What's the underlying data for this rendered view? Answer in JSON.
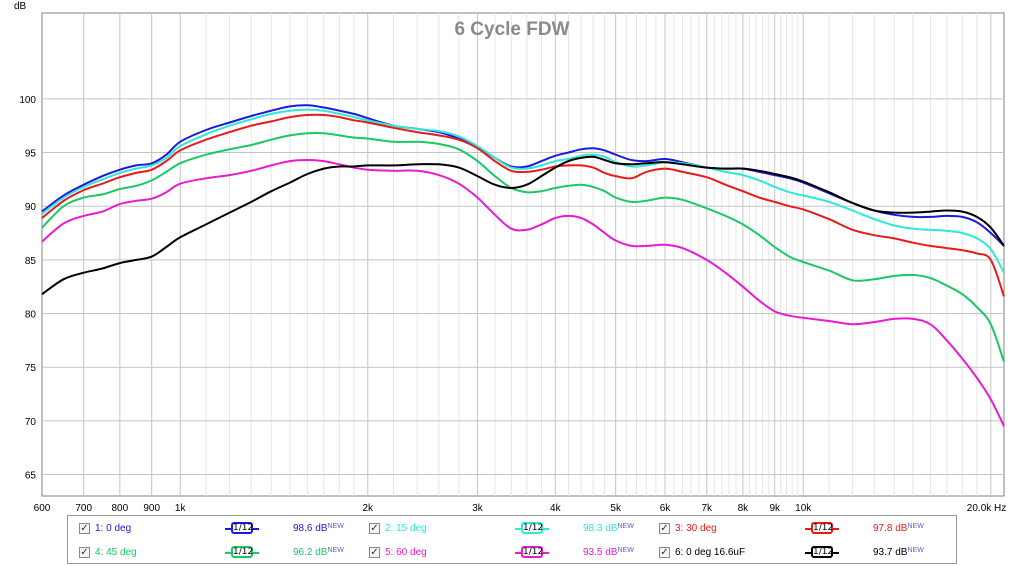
{
  "chart_data": {
    "type": "line",
    "title": "6 Cycle FDW",
    "ylabel": "dB",
    "xlabel": "Hz",
    "xscale": "log",
    "xlim": [
      600,
      21000
    ],
    "ylim": [
      63,
      108
    ],
    "grid": true,
    "x_ticks": [
      {
        "v": 600,
        "label": "600"
      },
      {
        "v": 700,
        "label": "700"
      },
      {
        "v": 800,
        "label": "800"
      },
      {
        "v": 900,
        "label": "900"
      },
      {
        "v": 1000,
        "label": "1k"
      },
      {
        "v": 2000,
        "label": "2k"
      },
      {
        "v": 3000,
        "label": "3k"
      },
      {
        "v": 4000,
        "label": "4k"
      },
      {
        "v": 5000,
        "label": "5k"
      },
      {
        "v": 6000,
        "label": "6k"
      },
      {
        "v": 7000,
        "label": "7k"
      },
      {
        "v": 8000,
        "label": "8k"
      },
      {
        "v": 9000,
        "label": "9k"
      },
      {
        "v": 10000,
        "label": "10k"
      },
      {
        "v": 20000,
        "label": "20.0k Hz"
      }
    ],
    "minor_x": [
      1100,
      1200,
      1300,
      1400,
      1500,
      1600,
      1700,
      1800,
      1900,
      2200,
      2400,
      2600,
      2800,
      3200,
      3400,
      3600,
      3800,
      4200,
      4400,
      4600,
      4800,
      5200,
      5400,
      5600,
      5800,
      6200,
      6400,
      6600,
      6800,
      7200,
      7400,
      7600,
      7800,
      8200,
      8400,
      8600,
      8800,
      9200,
      9400,
      9600,
      9800,
      11000,
      12000,
      13000,
      14000,
      15000,
      16000,
      17000,
      18000,
      19000
    ],
    "y_ticks": [
      65,
      70,
      75,
      80,
      85,
      90,
      95,
      100
    ],
    "series": [
      {
        "name": "1: 0 deg",
        "color": "#1a1ae0",
        "value_label": "98.6 dB",
        "x": [
          600,
          650,
          700,
          750,
          800,
          850,
          900,
          950,
          1000,
          1100,
          1200,
          1300,
          1400,
          1500,
          1600,
          1700,
          1800,
          1900,
          2000,
          2200,
          2400,
          2600,
          2800,
          3000,
          3200,
          3400,
          3600,
          3800,
          4000,
          4200,
          4400,
          4600,
          4800,
          5000,
          5300,
          5600,
          6000,
          6400,
          7000,
          7500,
          8000,
          8500,
          9000,
          9500,
          10000,
          11000,
          12000,
          13000,
          14000,
          15000,
          16000,
          17000,
          18000,
          19000,
          20000,
          21000
        ],
        "y": [
          89.5,
          91,
          92,
          92.8,
          93.4,
          93.8,
          94,
          94.8,
          96,
          97.1,
          97.8,
          98.4,
          98.9,
          99.3,
          99.4,
          99.2,
          98.9,
          98.6,
          98.2,
          97.5,
          97.2,
          96.9,
          96.3,
          95.5,
          94.5,
          93.7,
          93.7,
          94.2,
          94.7,
          95,
          95.3,
          95.4,
          95.2,
          94.8,
          94.3,
          94.2,
          94.4,
          94.1,
          93.6,
          93.5,
          93.5,
          93.2,
          92.9,
          92.6,
          92.2,
          91.2,
          90.3,
          89.6,
          89.2,
          89,
          89,
          89.1,
          89,
          88.5,
          87.5,
          86.3
        ]
      },
      {
        "name": "2: 15 deg",
        "color": "#2ee8d8",
        "value_label": "98.3 dB",
        "x": [
          600,
          650,
          700,
          750,
          800,
          850,
          900,
          950,
          1000,
          1100,
          1200,
          1300,
          1400,
          1500,
          1600,
          1700,
          1800,
          1900,
          2000,
          2200,
          2400,
          2600,
          2800,
          3000,
          3200,
          3400,
          3600,
          3800,
          4000,
          4200,
          4400,
          4600,
          4800,
          5000,
          5300,
          5600,
          6000,
          6400,
          7000,
          7500,
          8000,
          8500,
          9000,
          9500,
          10000,
          11000,
          12000,
          13000,
          14000,
          15000,
          16000,
          17000,
          18000,
          19000,
          20000,
          21000
        ],
        "y": [
          89.3,
          90.8,
          91.8,
          92.5,
          93.1,
          93.5,
          93.8,
          94.5,
          95.6,
          96.7,
          97.5,
          98.1,
          98.6,
          98.9,
          99,
          98.9,
          98.6,
          98.3,
          98,
          97.5,
          97.2,
          97,
          96.5,
          95.6,
          94.5,
          93.6,
          93.5,
          93.8,
          94.2,
          94.4,
          94.7,
          94.8,
          94.6,
          94.1,
          93.7,
          93.8,
          94.1,
          94,
          93.6,
          93.2,
          92.9,
          92.4,
          91.8,
          91.3,
          91,
          90.4,
          89.6,
          88.8,
          88.2,
          87.9,
          87.8,
          87.7,
          87.5,
          87,
          86,
          83.8
        ]
      },
      {
        "name": "3: 30 deg",
        "color": "#e81a1a",
        "value_label": "97.8 dB",
        "x": [
          600,
          650,
          700,
          750,
          800,
          850,
          900,
          950,
          1000,
          1100,
          1200,
          1300,
          1400,
          1500,
          1600,
          1700,
          1800,
          1900,
          2000,
          2200,
          2400,
          2600,
          2800,
          3000,
          3200,
          3400,
          3600,
          3800,
          4000,
          4200,
          4400,
          4600,
          4800,
          5000,
          5300,
          5600,
          6000,
          6400,
          7000,
          7500,
          8000,
          8500,
          9000,
          9500,
          10000,
          11000,
          12000,
          13000,
          14000,
          15000,
          16000,
          17000,
          18000,
          19000,
          20000,
          21000
        ],
        "y": [
          88.9,
          90.5,
          91.5,
          92.1,
          92.7,
          93.1,
          93.4,
          94.2,
          95.2,
          96.2,
          96.9,
          97.5,
          97.9,
          98.3,
          98.5,
          98.5,
          98.3,
          98,
          97.8,
          97.3,
          96.9,
          96.6,
          96.2,
          95.4,
          94.2,
          93.3,
          93.2,
          93.4,
          93.7,
          93.8,
          93.8,
          93.6,
          93.1,
          92.8,
          92.6,
          93.2,
          93.5,
          93.2,
          92.7,
          92,
          91.4,
          90.8,
          90.4,
          90,
          89.7,
          88.8,
          87.8,
          87.3,
          87,
          86.6,
          86.3,
          86.1,
          85.9,
          85.6,
          85,
          81.6
        ]
      },
      {
        "name": "4: 45 deg",
        "color": "#1ac864",
        "value_label": "96.2 dB",
        "x": [
          600,
          650,
          700,
          750,
          800,
          850,
          900,
          950,
          1000,
          1100,
          1200,
          1300,
          1400,
          1500,
          1600,
          1700,
          1800,
          1900,
          2000,
          2200,
          2400,
          2600,
          2800,
          3000,
          3200,
          3400,
          3600,
          3800,
          4000,
          4200,
          4400,
          4600,
          4800,
          5000,
          5300,
          5600,
          6000,
          6400,
          7000,
          7500,
          8000,
          8500,
          9000,
          9500,
          10000,
          11000,
          12000,
          13000,
          14000,
          15000,
          16000,
          17000,
          18000,
          19000,
          20000,
          21000
        ],
        "y": [
          88,
          90,
          90.8,
          91.1,
          91.6,
          91.9,
          92.4,
          93.2,
          94,
          94.8,
          95.3,
          95.7,
          96.2,
          96.6,
          96.8,
          96.8,
          96.6,
          96.4,
          96.3,
          96,
          96,
          95.8,
          95.3,
          94.2,
          92.8,
          91.7,
          91.3,
          91.4,
          91.7,
          91.9,
          92,
          91.8,
          91.4,
          90.8,
          90.4,
          90.5,
          90.8,
          90.6,
          89.8,
          89.1,
          88.3,
          87.3,
          86.2,
          85.3,
          84.8,
          84,
          83.1,
          83.2,
          83.5,
          83.6,
          83.3,
          82.6,
          81.8,
          80.6,
          79,
          75.5
        ]
      },
      {
        "name": "5: 60 deg",
        "color": "#e81ad2",
        "value_label": "93.5 dB",
        "x": [
          600,
          650,
          700,
          750,
          800,
          850,
          900,
          950,
          1000,
          1100,
          1200,
          1300,
          1400,
          1500,
          1600,
          1700,
          1800,
          1900,
          2000,
          2200,
          2400,
          2600,
          2800,
          3000,
          3200,
          3400,
          3600,
          3800,
          4000,
          4200,
          4400,
          4600,
          4800,
          5000,
          5300,
          5600,
          6000,
          6400,
          7000,
          7500,
          8000,
          8500,
          9000,
          9500,
          10000,
          11000,
          12000,
          13000,
          14000,
          15000,
          16000,
          17000,
          18000,
          19000,
          20000,
          21000
        ],
        "y": [
          86.7,
          88.4,
          89.1,
          89.5,
          90.2,
          90.5,
          90.7,
          91.3,
          92.1,
          92.6,
          92.9,
          93.3,
          93.8,
          94.2,
          94.3,
          94.2,
          93.9,
          93.6,
          93.4,
          93.3,
          93.3,
          92.9,
          92.1,
          90.8,
          89.2,
          87.9,
          87.8,
          88.3,
          88.9,
          89.1,
          88.9,
          88.3,
          87.5,
          86.8,
          86.3,
          86.3,
          86.4,
          86.1,
          85,
          83.8,
          82.5,
          81.2,
          80.2,
          79.8,
          79.6,
          79.3,
          79,
          79.2,
          79.5,
          79.5,
          79,
          77.5,
          75.8,
          74,
          72,
          69.5
        ]
      },
      {
        "name": "6: 0 deg 16.6uF",
        "color": "#000000",
        "value_label": "93.7 dB",
        "x": [
          600,
          650,
          700,
          750,
          800,
          850,
          900,
          950,
          1000,
          1100,
          1200,
          1300,
          1400,
          1500,
          1600,
          1700,
          1800,
          1900,
          2000,
          2200,
          2400,
          2600,
          2800,
          3000,
          3200,
          3400,
          3600,
          3800,
          4000,
          4200,
          4400,
          4600,
          4800,
          5000,
          5300,
          5600,
          6000,
          6400,
          7000,
          7500,
          8000,
          8500,
          9000,
          9500,
          10000,
          11000,
          12000,
          13000,
          14000,
          15000,
          16000,
          17000,
          18000,
          19000,
          20000,
          21000
        ],
        "y": [
          81.8,
          83.2,
          83.8,
          84.2,
          84.7,
          85,
          85.3,
          86.2,
          87.1,
          88.3,
          89.4,
          90.4,
          91.4,
          92.2,
          93,
          93.5,
          93.7,
          93.7,
          93.8,
          93.8,
          93.9,
          93.9,
          93.6,
          92.8,
          92,
          91.7,
          92,
          92.8,
          93.6,
          94.2,
          94.5,
          94.6,
          94.3,
          94,
          93.9,
          94,
          94.1,
          93.9,
          93.6,
          93.5,
          93.5,
          93.3,
          93,
          92.7,
          92.3,
          91.3,
          90.3,
          89.6,
          89.4,
          89.4,
          89.5,
          89.6,
          89.5,
          89,
          88,
          86.3
        ]
      }
    ]
  },
  "legend": {
    "smoothing_label": "1/12",
    "new_tag": "NEW",
    "check_mark": "✓"
  }
}
